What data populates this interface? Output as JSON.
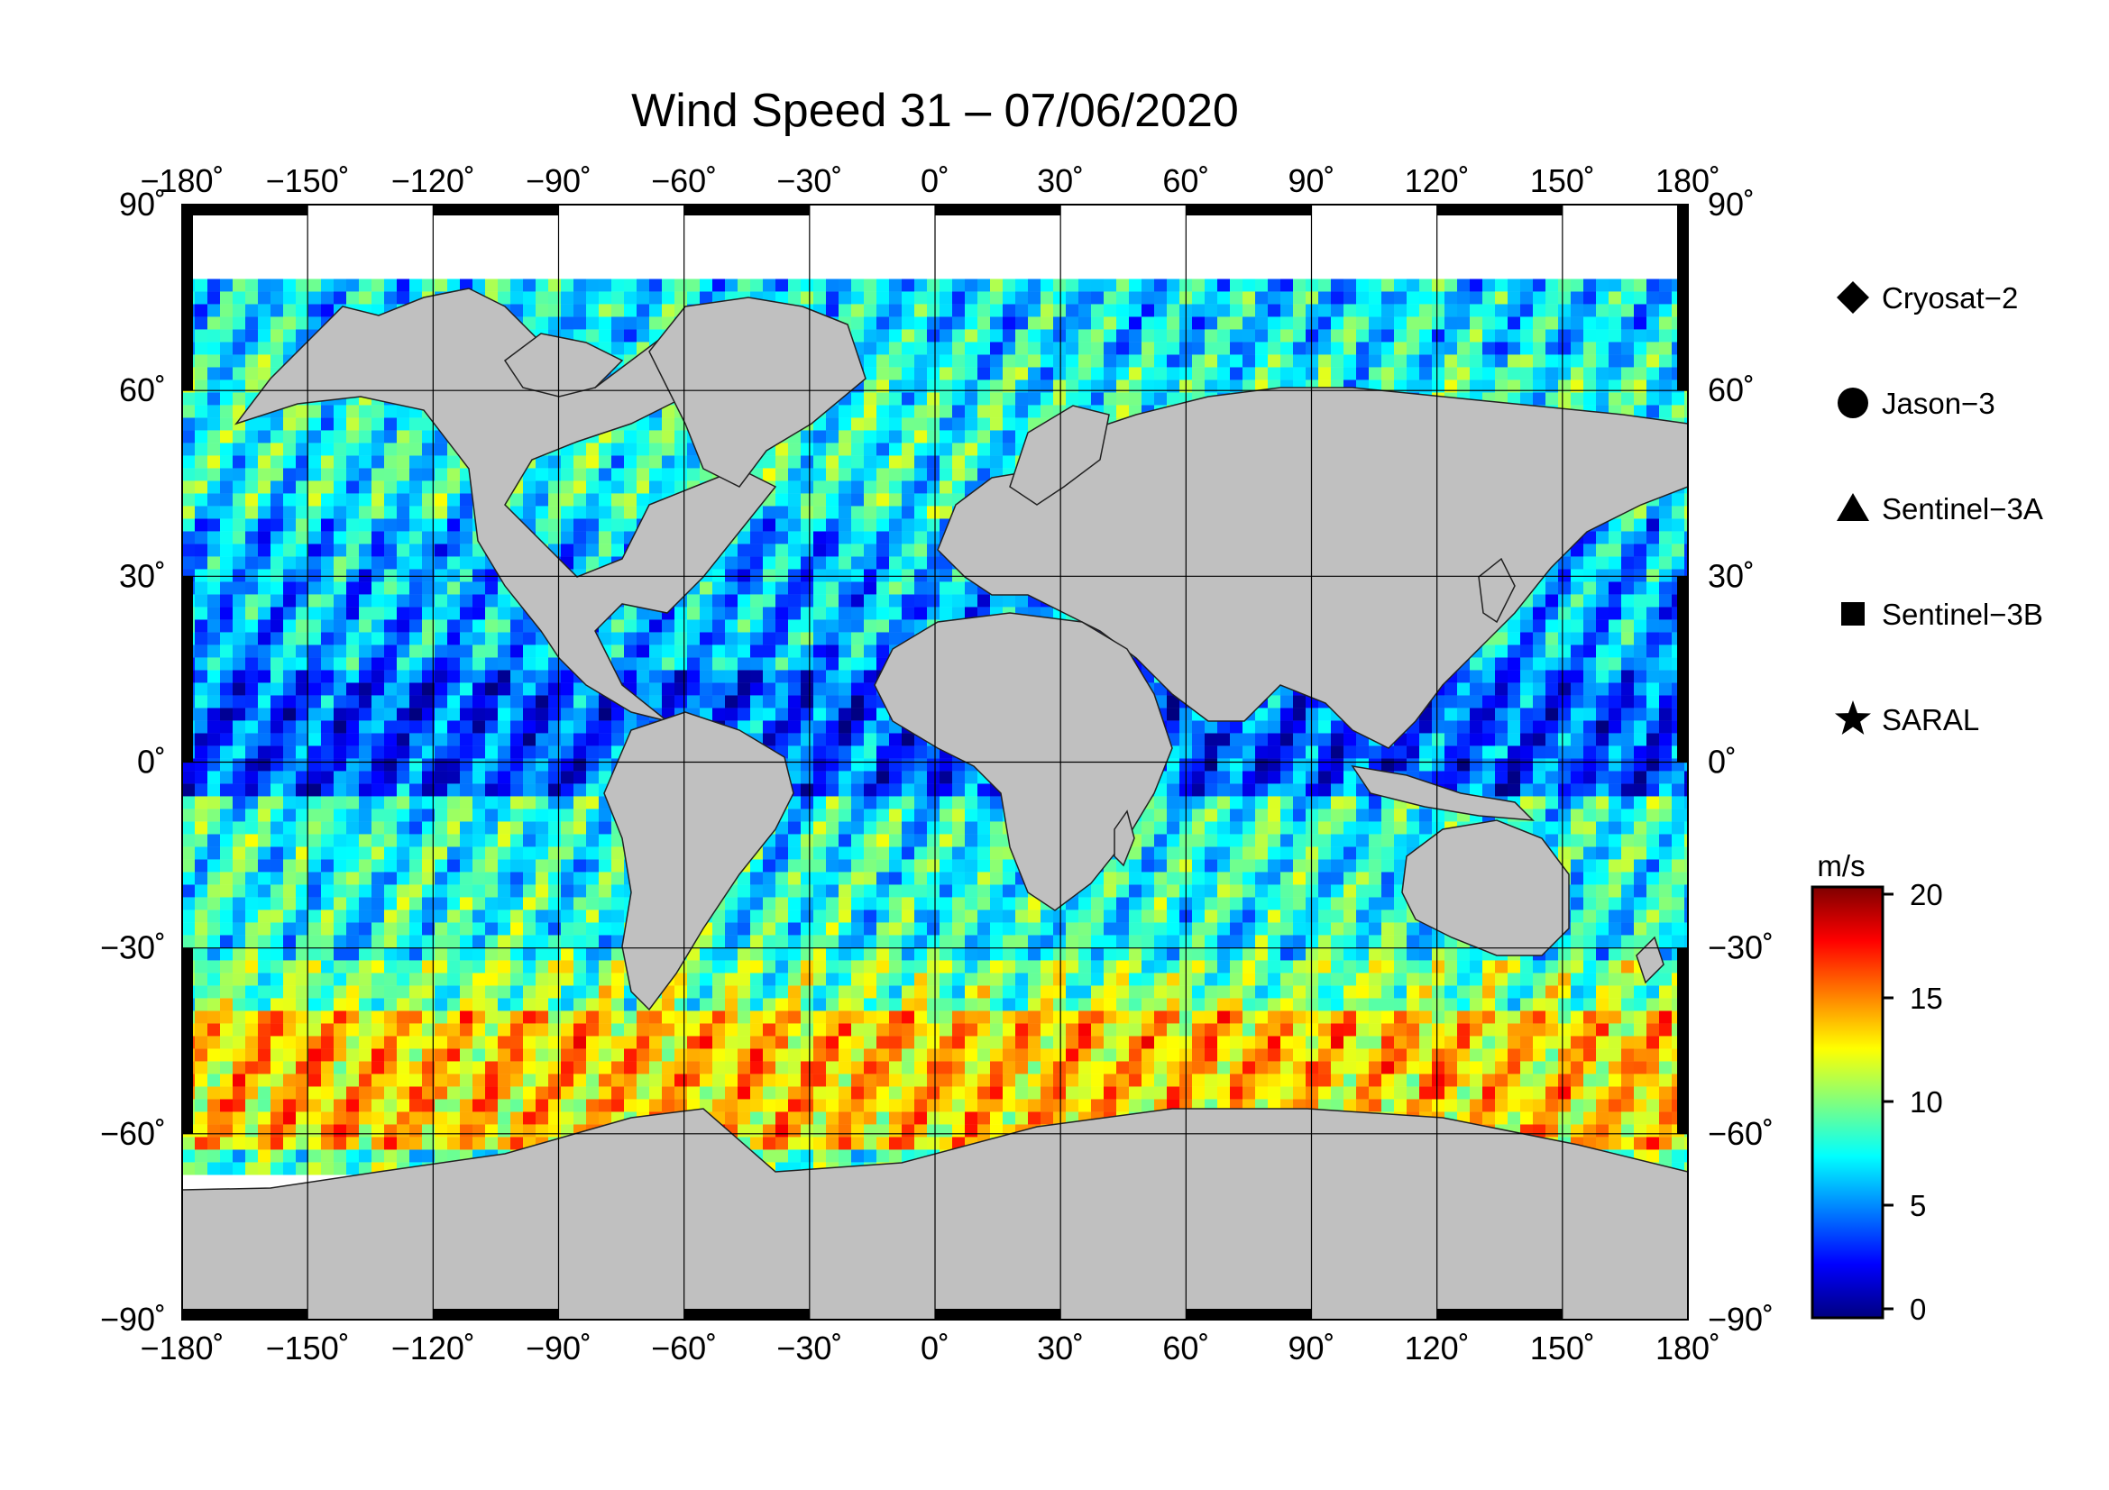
{
  "title": "Wind Speed 31 – 07/06/2020",
  "map": {
    "projection": "equirectangular",
    "lon_range": [
      -180,
      180
    ],
    "lat_range": [
      -90,
      90
    ],
    "lon_ticks": [
      {
        "value": -180,
        "label": "−180˚"
      },
      {
        "value": -150,
        "label": "−150˚"
      },
      {
        "value": -120,
        "label": "−120˚"
      },
      {
        "value": -90,
        "label": "−90˚"
      },
      {
        "value": -60,
        "label": "−60˚"
      },
      {
        "value": -30,
        "label": "−30˚"
      },
      {
        "value": 0,
        "label": "0˚"
      },
      {
        "value": 30,
        "label": "30˚"
      },
      {
        "value": 60,
        "label": "60˚"
      },
      {
        "value": 90,
        "label": "90˚"
      },
      {
        "value": 120,
        "label": "120˚"
      },
      {
        "value": 150,
        "label": "150˚"
      },
      {
        "value": 180,
        "label": "180˚"
      }
    ],
    "lat_ticks": [
      {
        "value": 90,
        "label": "90˚"
      },
      {
        "value": 60,
        "label": "60˚"
      },
      {
        "value": 30,
        "label": "30˚"
      },
      {
        "value": 0,
        "label": "0˚"
      },
      {
        "value": -30,
        "label": "−30˚"
      },
      {
        "value": -60,
        "label": "−60˚"
      },
      {
        "value": -90,
        "label": "−90˚"
      }
    ],
    "land_color": "#c0c0c0",
    "ice_color": "#ffffff",
    "grid": true
  },
  "legend": {
    "items": [
      {
        "symbol": "diamond",
        "label": "Cryosat−2"
      },
      {
        "symbol": "circle",
        "label": "Jason−3"
      },
      {
        "symbol": "triangle",
        "label": "Sentinel−3A"
      },
      {
        "symbol": "square",
        "label": "Sentinel−3B"
      },
      {
        "symbol": "star",
        "label": "SARAL"
      }
    ]
  },
  "colorbar": {
    "unit": "m/s",
    "min": 0,
    "max": 20,
    "ticks": [
      {
        "value": 20,
        "label": "20"
      },
      {
        "value": 15,
        "label": "15"
      },
      {
        "value": 10,
        "label": "10"
      },
      {
        "value": 5,
        "label": "5"
      },
      {
        "value": 0,
        "label": "0"
      }
    ],
    "colors": [
      "#00007f",
      "#0000ff",
      "#007fff",
      "#00ffff",
      "#7fff7f",
      "#ffff00",
      "#ff7f00",
      "#ff0000",
      "#7f0000"
    ]
  }
}
